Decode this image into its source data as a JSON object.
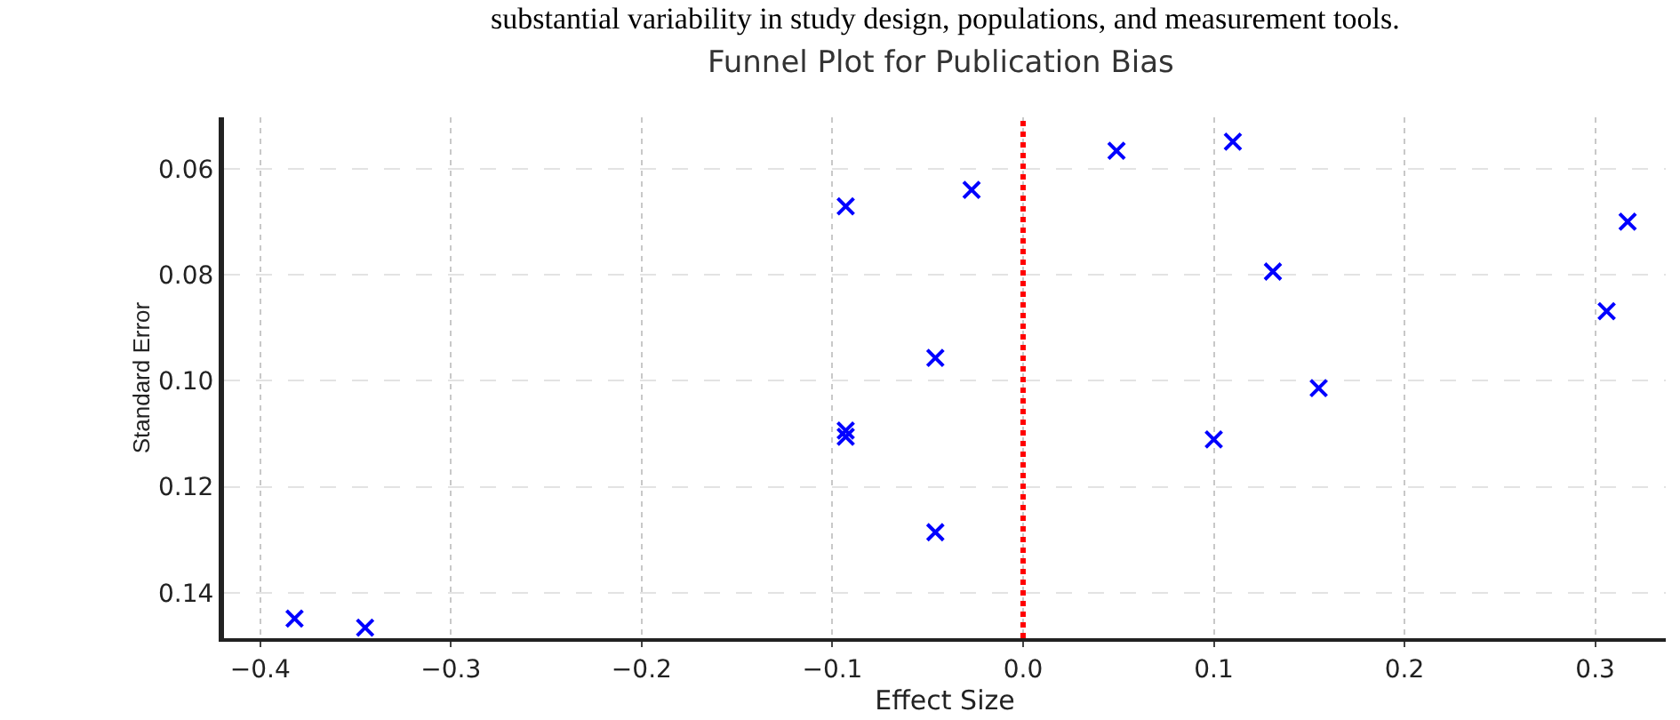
{
  "chart_data": {
    "type": "scatter",
    "title": "Funnel Plot for Publication Bias",
    "xlabel": "Effect Size",
    "ylabel": "Standard Error",
    "annotations": [
      "substantial variability in study design, populations, and measurement tools."
    ],
    "series": [
      {
        "color": "#0000ff",
        "x": [
          -0.382,
          -0.345,
          -0.093,
          -0.093,
          -0.093,
          -0.046,
          -0.046,
          -0.027,
          0.049,
          0.11,
          0.131,
          0.155,
          0.1,
          0.306,
          0.317
        ],
        "values": [
          0.1449,
          0.1466,
          0.0671,
          0.1094,
          0.1106,
          0.0957,
          0.1286,
          0.064,
          0.0566,
          0.0549,
          0.0794,
          0.1014,
          0.1111,
          0.0869,
          0.07
        ]
      }
    ],
    "marker": "cross",
    "xlim": [
      -0.419,
      0.337
    ],
    "xticks": [
      {
        "value": -0.4,
        "label": "−0.4"
      },
      {
        "value": -0.3,
        "label": "−0.3"
      },
      {
        "value": -0.2,
        "label": "−0.2"
      },
      {
        "value": -0.1,
        "label": "−0.1"
      },
      {
        "value": 0,
        "label": "0.0"
      },
      {
        "value": 0.1,
        "label": "0.1"
      },
      {
        "value": 0.2,
        "label": "0.2"
      },
      {
        "value": 0.3,
        "label": "0.3"
      }
    ],
    "ylim": [
      0.1486,
      0.0503
    ],
    "yticks": [
      {
        "value": 0.06,
        "label": "0.06"
      },
      {
        "value": 0.08,
        "label": "0.08"
      },
      {
        "value": 0.1,
        "label": "0.10"
      },
      {
        "value": 0.12,
        "label": "0.12"
      },
      {
        "value": 0.14,
        "label": "0.14"
      }
    ],
    "grid": true,
    "ref_lines": [
      {
        "axis": "x",
        "value": 0,
        "color": "#ff0000",
        "line_style": "dotted"
      }
    ]
  }
}
